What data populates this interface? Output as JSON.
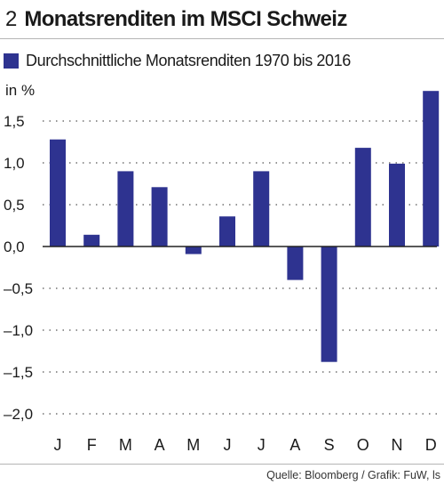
{
  "figure": {
    "number": "2",
    "title": "Monatsrenditen im MSCI Schweiz"
  },
  "source": "Quelle: Bloomberg / Grafik: FuW, ls",
  "colors": {
    "bar": "#2e3390",
    "gridline": "#555555",
    "axis": "#222222",
    "rule": "#b5b5b5"
  },
  "chart_data": {
    "type": "bar",
    "title": "Monatsrenditen im MSCI Schweiz",
    "ylabel": "in %",
    "legend": "Durchschnittliche Monatsrenditen 1970 bis 2016",
    "legend_position": "top-left",
    "categories": [
      "J",
      "F",
      "M",
      "A",
      "M",
      "J",
      "J",
      "A",
      "S",
      "O",
      "N",
      "D"
    ],
    "values": [
      1.28,
      0.14,
      0.9,
      0.71,
      -0.09,
      0.36,
      0.9,
      -0.4,
      -1.38,
      1.18,
      0.99,
      1.86
    ],
    "ylim": [
      -2.0,
      1.9
    ],
    "yticks": [
      1.5,
      1.0,
      0.5,
      0.0,
      -0.5,
      -1.0,
      -1.5,
      -2.0
    ],
    "ytick_labels": [
      "1,5",
      "1,0",
      "0,5",
      "0,0",
      "–0,5",
      "–1,0",
      "–1,5",
      "–2,0"
    ],
    "grid": "dotted horizontal"
  }
}
